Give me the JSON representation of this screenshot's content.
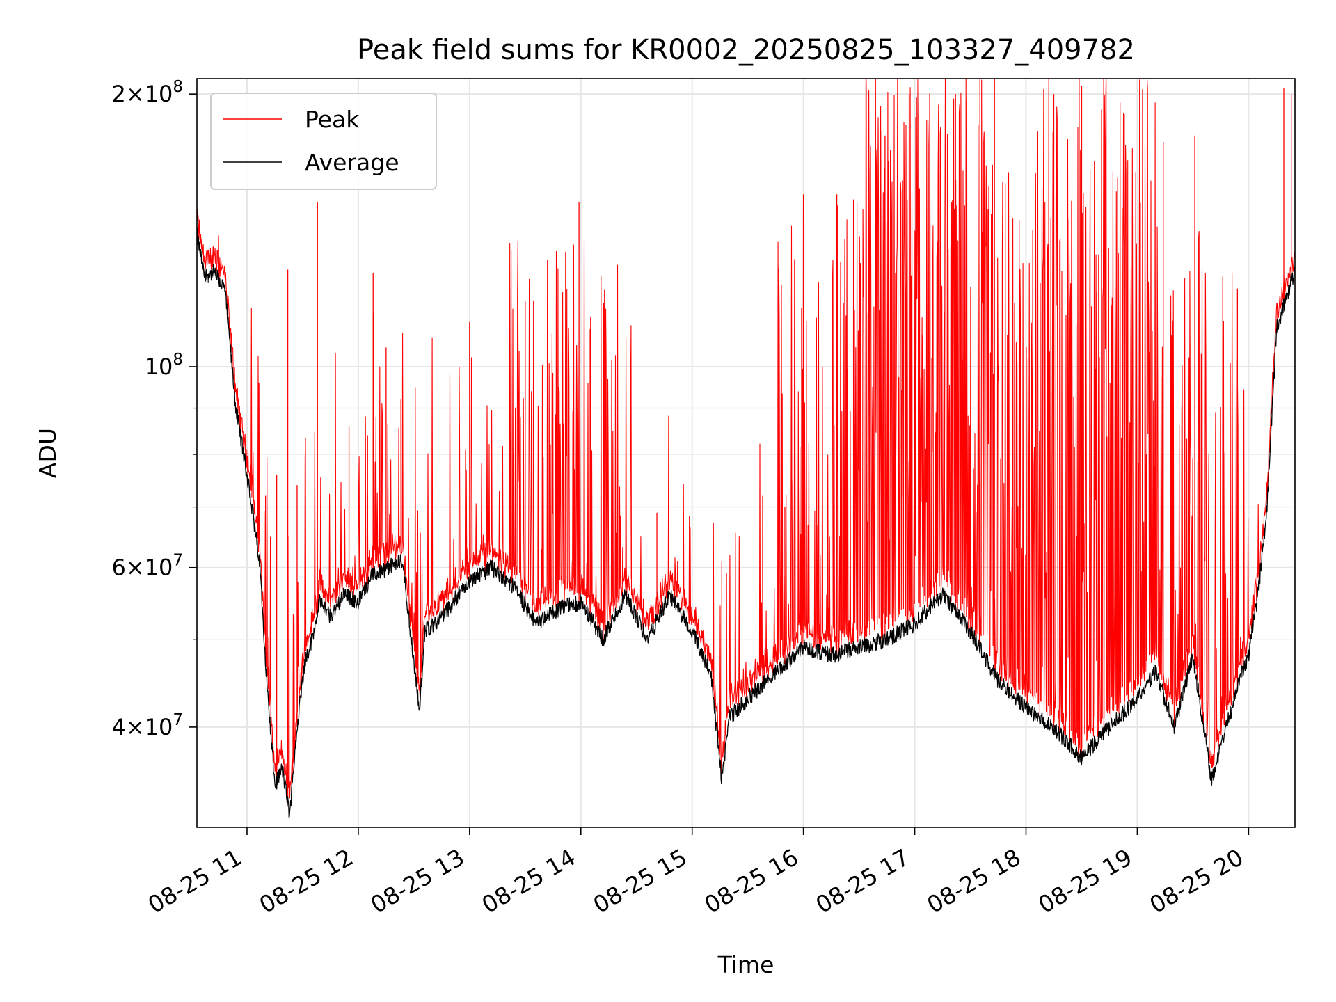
{
  "chart_data": {
    "type": "line",
    "title": "Peak field sums for KR0002_20250825_103327_409782",
    "xlabel": "Time",
    "ylabel": "ADU",
    "y_scale": "log",
    "ylim": [
      31000000,
      208000000
    ],
    "xlim": [
      "2025-08-25 10:33",
      "2025-08-25 20:25"
    ],
    "grid": true,
    "legend_position": "top-left",
    "x_ticks": [
      {
        "value": "2025-08-25 11:00",
        "label": "08-25 11"
      },
      {
        "value": "2025-08-25 12:00",
        "label": "08-25 12"
      },
      {
        "value": "2025-08-25 13:00",
        "label": "08-25 13"
      },
      {
        "value": "2025-08-25 14:00",
        "label": "08-25 14"
      },
      {
        "value": "2025-08-25 15:00",
        "label": "08-25 15"
      },
      {
        "value": "2025-08-25 16:00",
        "label": "08-25 16"
      },
      {
        "value": "2025-08-25 17:00",
        "label": "08-25 17"
      },
      {
        "value": "2025-08-25 18:00",
        "label": "08-25 18"
      },
      {
        "value": "2025-08-25 19:00",
        "label": "08-25 19"
      },
      {
        "value": "2025-08-25 20:00",
        "label": "08-25 20"
      }
    ],
    "y_ticks": [
      {
        "value": 200000000,
        "mantissa": "2",
        "exponent": "8"
      },
      {
        "value": 100000000,
        "mantissa": "",
        "exponent": "8"
      },
      {
        "value": 60000000,
        "mantissa": "6",
        "exponent": "7"
      },
      {
        "value": 40000000,
        "mantissa": "4",
        "exponent": "7"
      }
    ],
    "y_tick_times": "×",
    "y_tick_base": "10",
    "y_minor_ticks": [
      50000000,
      70000000,
      80000000,
      90000000
    ],
    "series": [
      {
        "name": "Average",
        "color": "#000000",
        "times": [
          "2025-08-25 10:33",
          "10:37",
          "10:42",
          "10:48",
          "10:54",
          "11:00",
          "11:04",
          "11:07",
          "11:11",
          "11:15",
          "11:19",
          "11:23",
          "11:27",
          "11:31",
          "11:35",
          "11:39",
          "11:45",
          "11:52",
          "12:00",
          "12:08",
          "12:16",
          "12:24",
          "12:30",
          "12:33",
          "12:36",
          "12:45",
          "13:00",
          "13:12",
          "13:24",
          "13:36",
          "13:48",
          "14:00",
          "14:12",
          "14:24",
          "14:36",
          "14:48",
          "15:00",
          "15:10",
          "15:16",
          "15:20",
          "15:30",
          "15:45",
          "16:00",
          "16:15",
          "16:30",
          "16:45",
          "17:00",
          "17:15",
          "17:30",
          "17:45",
          "18:00",
          "18:15",
          "18:30",
          "18:45",
          "19:00",
          "19:10",
          "19:20",
          "19:30",
          "19:40",
          "19:55",
          "20:00",
          "20:05",
          "20:10",
          "20:15",
          "20:25"
        ],
        "values": [
          140000000,
          126000000,
          127000000,
          122000000,
          90000000,
          76000000,
          67000000,
          60000000,
          44000000,
          34500000,
          36000000,
          32000000,
          40000000,
          47000000,
          50000000,
          55000000,
          53000000,
          56000000,
          55000000,
          59000000,
          60000000,
          61000000,
          47000000,
          42000000,
          51000000,
          53000000,
          58000000,
          60000000,
          57000000,
          52000000,
          54000000,
          55000000,
          50000000,
          56000000,
          50000000,
          56000000,
          51000000,
          46000000,
          35000000,
          41000000,
          43000000,
          46000000,
          49000000,
          48000000,
          49000000,
          50000000,
          52000000,
          56000000,
          51000000,
          45000000,
          42000000,
          40000000,
          37000000,
          40000000,
          43000000,
          46000000,
          40000000,
          48000000,
          35000000,
          45000000,
          48000000,
          56000000,
          70000000,
          110000000,
          128000000
        ]
      },
      {
        "name": "Peak",
        "color": "#ff0000",
        "spikes": [
          {
            "time": "11:10",
            "value": 72000000
          },
          {
            "time": "11:16",
            "value": 76000000
          },
          {
            "time": "11:22",
            "value": 128000000
          },
          {
            "time": "11:27",
            "value": 74000000
          },
          {
            "time": "11:38",
            "value": 152000000
          },
          {
            "time": "11:55",
            "value": 86000000
          },
          {
            "time": "12:05",
            "value": 84000000
          },
          {
            "time": "12:08",
            "value": 127000000
          },
          {
            "time": "12:15",
            "value": 105000000
          },
          {
            "time": "12:23",
            "value": 92000000
          },
          {
            "time": "13:00",
            "value": 112000000
          },
          {
            "time": "13:30",
            "value": 118000000
          },
          {
            "time": "13:48",
            "value": 95000000
          },
          {
            "time": "13:59",
            "value": 152000000
          },
          {
            "time": "14:05",
            "value": 110000000
          },
          {
            "time": "14:12",
            "value": 106000000
          },
          {
            "time": "14:41",
            "value": 69000000
          },
          {
            "time": "15:16",
            "value": 61000000
          },
          {
            "time": "15:38",
            "value": 72000000
          },
          {
            "time": "15:50",
            "value": 70000000
          },
          {
            "time": "15:59",
            "value": 116000000
          },
          {
            "time": "16:18",
            "value": 155000000
          },
          {
            "time": "16:27",
            "value": 153000000
          },
          {
            "time": "16:44",
            "value": 180000000
          },
          {
            "time": "16:57",
            "value": 200000000
          },
          {
            "time": "17:22",
            "value": 200000000
          },
          {
            "time": "17:43",
            "value": 208000000
          },
          {
            "time": "18:15",
            "value": 200000000
          },
          {
            "time": "18:30",
            "value": 204000000
          },
          {
            "time": "18:42",
            "value": 200000000
          },
          {
            "time": "18:53",
            "value": 190000000
          },
          {
            "time": "19:14",
            "value": 177000000
          },
          {
            "time": "19:31",
            "value": 180000000
          },
          {
            "time": "19:54",
            "value": 122000000
          },
          {
            "time": "20:19",
            "value": 203000000
          },
          {
            "time": "20:23",
            "value": 200000000
          }
        ]
      }
    ]
  }
}
